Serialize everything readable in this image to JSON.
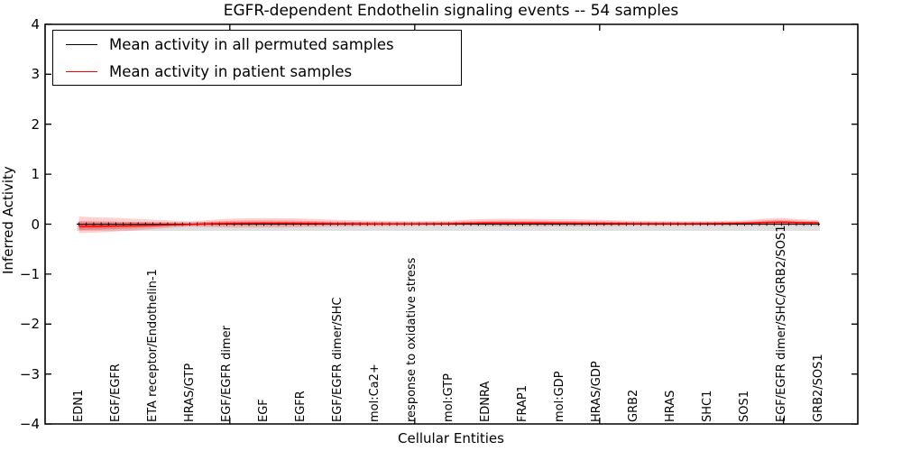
{
  "figure": {
    "title": "EGFR-dependent Endothelin signaling events -- 54 samples",
    "xlabel": "Cellular Entities",
    "ylabel": "Inferred Activity"
  },
  "legend": {
    "position": "upper left",
    "entries": [
      {
        "label": "Mean activity in all permuted samples",
        "color": "#000000"
      },
      {
        "label": "Mean activity in patient samples",
        "color": "#ff0000"
      }
    ]
  },
  "ytick_labels": [
    "4",
    "3",
    "2",
    "1",
    "0",
    "−1",
    "−2",
    "−3",
    "−4"
  ],
  "colors": {
    "permuted_line": "#000000",
    "patient_line": "#ff0000",
    "patient_band_outer": "rgba(255,0,0,0.18)",
    "patient_band_mid": "rgba(255,0,0,0.25)",
    "patient_band_core": "rgba(255,0,0,0.40)",
    "permuted_band": "rgba(0,0,0,0.12)",
    "axis": "#000000"
  },
  "chart_data": {
    "type": "line",
    "title": "EGFR-dependent Endothelin signaling events -- 54 samples",
    "xlabel": "Cellular Entities",
    "ylabel": "Inferred Activity",
    "ylim": [
      -4,
      4
    ],
    "yticks_values": [
      4,
      3,
      2,
      1,
      0,
      -1,
      -2,
      -3,
      -4
    ],
    "grid": false,
    "legend_position": "upper left",
    "entities": [
      "EDN1",
      "EGF/EGFR",
      "ETA receptor/Endothelin-1",
      "HRAS/GTP",
      "EGF/EGFR dimer",
      "EGF",
      "EGFR",
      "EGF/EGFR dimer/SHC",
      "mol:Ca2+",
      "response to oxidative stress",
      "mol:GTP",
      "EDNRA",
      "FRAP1",
      "mol:GDP",
      "HRAS/GDP",
      "GRB2",
      "HRAS",
      "SHC1",
      "SOS1",
      "EGF/EGFR dimer/SHC/GRB2/SOS1",
      "GRB2/SOS1"
    ],
    "series": [
      {
        "name": "Mean activity in all permuted samples",
        "color": "#000000",
        "marker": "+",
        "values": [
          0,
          0,
          0,
          0,
          0,
          0,
          0,
          0,
          0,
          0,
          0,
          0,
          0,
          0,
          0,
          0,
          0,
          0,
          0,
          0,
          0
        ]
      },
      {
        "name": "Mean activity in patient samples",
        "color": "#ff0000",
        "values": [
          -0.045,
          -0.036,
          -0.023,
          -0.005,
          0.013,
          0.018,
          0.016,
          0.009,
          0.005,
          0.005,
          0.009,
          0.022,
          0.023,
          0.02,
          0.016,
          0.009,
          0.009,
          0.011,
          0.02,
          0.04,
          0.027
        ]
      }
    ],
    "bands": {
      "permuted_band": {
        "upper": 0.045,
        "lower": -0.135
      },
      "patient_band": {
        "x_index": [
          0,
          0.5,
          1,
          1.5,
          2,
          2.5,
          3,
          3.5,
          4,
          4.5,
          5,
          5.5,
          6,
          6.5,
          7,
          7.5,
          8,
          8.5,
          9,
          9.5,
          10,
          10.5,
          11,
          11.5,
          12,
          12.5,
          13,
          13.5,
          14,
          14.5,
          15,
          15.5,
          16,
          16.5,
          17,
          17.5,
          18,
          18.5,
          19,
          19.5,
          20
        ],
        "mean": [
          -0.045,
          -0.042,
          -0.036,
          -0.031,
          -0.023,
          -0.014,
          -0.005,
          0.005,
          0.013,
          0.016,
          0.018,
          0.018,
          0.016,
          0.013,
          0.009,
          0.007,
          0.005,
          0.005,
          0.005,
          0.007,
          0.009,
          0.016,
          0.022,
          0.023,
          0.023,
          0.022,
          0.02,
          0.018,
          0.016,
          0.013,
          0.009,
          0.009,
          0.009,
          0.009,
          0.011,
          0.014,
          0.02,
          0.031,
          0.04,
          0.031,
          0.027
        ],
        "upper": [
          0.153,
          0.135,
          0.126,
          0.108,
          0.09,
          0.072,
          0.054,
          0.081,
          0.108,
          0.117,
          0.121,
          0.117,
          0.112,
          0.099,
          0.085,
          0.076,
          0.067,
          0.063,
          0.06,
          0.063,
          0.067,
          0.09,
          0.103,
          0.108,
          0.106,
          0.103,
          0.099,
          0.094,
          0.088,
          0.078,
          0.067,
          0.063,
          0.06,
          0.058,
          0.06,
          0.067,
          0.072,
          0.108,
          0.126,
          0.099,
          0.081
        ],
        "lower": [
          -0.18,
          -0.168,
          -0.15,
          -0.126,
          -0.099,
          -0.072,
          -0.051,
          -0.06,
          -0.069,
          -0.07,
          -0.069,
          -0.067,
          -0.063,
          -0.056,
          -0.051,
          -0.045,
          -0.042,
          -0.038,
          -0.036,
          -0.032,
          -0.031,
          -0.034,
          -0.042,
          -0.045,
          -0.045,
          -0.045,
          -0.045,
          -0.043,
          -0.042,
          -0.038,
          -0.034,
          -0.032,
          -0.031,
          -0.029,
          -0.031,
          -0.032,
          -0.034,
          -0.031,
          -0.027,
          -0.032,
          -0.036
        ]
      }
    },
    "unlabeled_x_ticks_index": [
      4.08,
      9.08,
      14.08,
      19.05
    ]
  }
}
